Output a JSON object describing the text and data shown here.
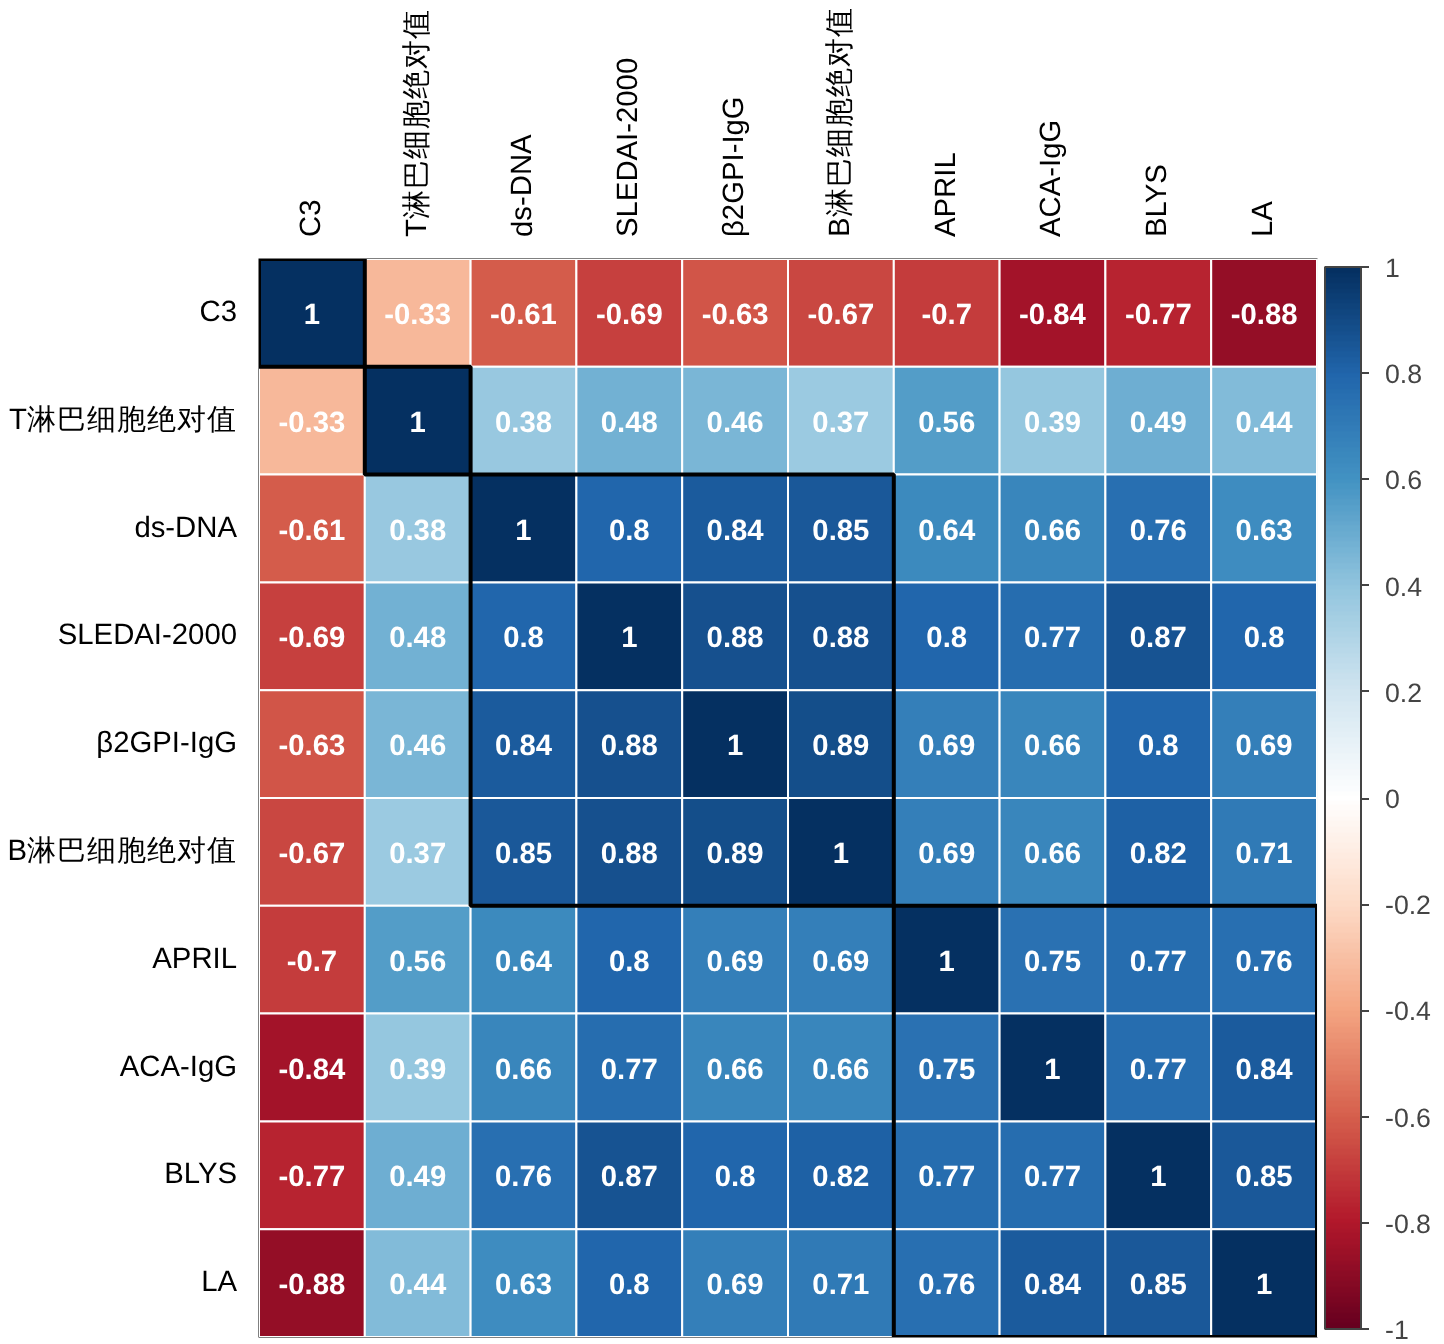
{
  "chart_data": {
    "type": "heatmap",
    "categories": [
      "C3",
      "T淋巴细胞绝对值",
      "ds-DNA",
      "SLEDAI-2000",
      "β2GPI-IgG",
      "B淋巴细胞绝对值",
      "APRIL",
      "ACA-IgG",
      "BLYS",
      "LA"
    ],
    "y_categories": [
      "C3",
      "T淋巴细胞绝对值",
      "ds-DNA",
      "SLEDAI-2000",
      "β2GPI-IgG",
      "B淋巴细胞绝对值",
      "APRIL",
      "ACA-IgG",
      "BLYS",
      "LA"
    ],
    "cells": [
      [
        1,
        -0.33,
        -0.61,
        -0.69,
        -0.63,
        -0.67,
        -0.7,
        -0.84,
        -0.77,
        -0.88
      ],
      [
        -0.33,
        1,
        0.38,
        0.48,
        0.46,
        0.37,
        0.56,
        0.39,
        0.49,
        0.44
      ],
      [
        -0.61,
        0.38,
        1,
        0.8,
        0.84,
        0.85,
        0.64,
        0.66,
        0.76,
        0.63
      ],
      [
        -0.69,
        0.48,
        0.8,
        1,
        0.88,
        0.88,
        0.8,
        0.77,
        0.87,
        0.8
      ],
      [
        -0.63,
        0.46,
        0.84,
        0.88,
        1,
        0.89,
        0.69,
        0.66,
        0.8,
        0.69
      ],
      [
        -0.67,
        0.37,
        0.85,
        0.88,
        0.89,
        1,
        0.69,
        0.66,
        0.82,
        0.71
      ],
      [
        -0.7,
        0.56,
        0.64,
        0.8,
        0.69,
        0.69,
        1,
        0.75,
        0.77,
        0.76
      ],
      [
        -0.84,
        0.39,
        0.66,
        0.77,
        0.66,
        0.66,
        0.75,
        1,
        0.77,
        0.84
      ],
      [
        -0.77,
        0.49,
        0.76,
        0.87,
        0.8,
        0.82,
        0.77,
        0.77,
        1,
        0.85
      ],
      [
        -0.88,
        0.44,
        0.63,
        0.8,
        0.69,
        0.71,
        0.76,
        0.84,
        0.85,
        1
      ]
    ],
    "data_labels": true,
    "clim": [
      -1,
      1
    ],
    "cticks": [
      -1,
      -0.8,
      -0.6,
      -0.4,
      -0.2,
      0,
      0.2,
      0.4,
      0.6,
      0.8,
      1
    ]
  }
}
